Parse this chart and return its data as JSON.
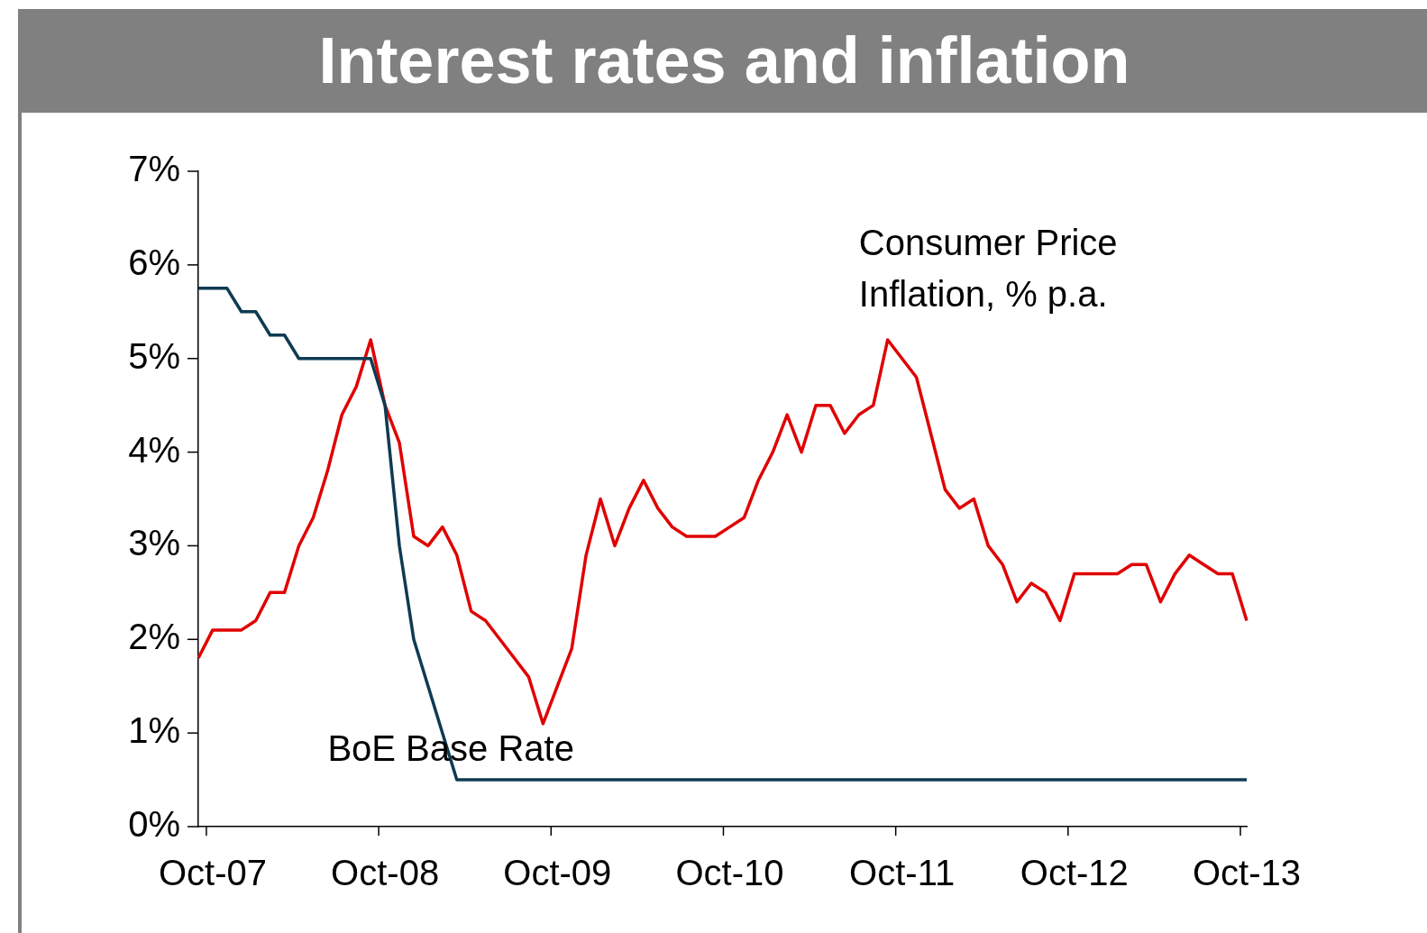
{
  "chart_data": {
    "type": "line",
    "title": "Interest rates and inflation",
    "categories": [
      null,
      "Oct-07",
      null,
      null,
      null,
      null,
      null,
      null,
      null,
      null,
      null,
      null,
      null,
      "Oct-08",
      null,
      null,
      null,
      null,
      null,
      null,
      null,
      null,
      null,
      null,
      null,
      "Oct-09",
      null,
      null,
      null,
      null,
      null,
      null,
      null,
      null,
      null,
      null,
      null,
      "Oct-10",
      null,
      null,
      null,
      null,
      null,
      null,
      null,
      null,
      null,
      null,
      null,
      "Oct-11",
      null,
      null,
      null,
      null,
      null,
      null,
      null,
      null,
      null,
      null,
      null,
      "Oct-12",
      null,
      null,
      null,
      null,
      null,
      null,
      null,
      null,
      null,
      null,
      null,
      "Oct-13"
    ],
    "series": [
      {
        "name": "BoE Base Rate",
        "color": "#0f3b52",
        "values": [
          5.75,
          5.75,
          5.75,
          5.5,
          5.5,
          5.25,
          5.25,
          5.0,
          5.0,
          5.0,
          5.0,
          5.0,
          5.0,
          4.5,
          3.0,
          2.0,
          1.5,
          1.0,
          0.5,
          0.5,
          0.5,
          0.5,
          0.5,
          0.5,
          0.5,
          0.5,
          0.5,
          0.5,
          0.5,
          0.5,
          0.5,
          0.5,
          0.5,
          0.5,
          0.5,
          0.5,
          0.5,
          0.5,
          0.5,
          0.5,
          0.5,
          0.5,
          0.5,
          0.5,
          0.5,
          0.5,
          0.5,
          0.5,
          0.5,
          0.5,
          0.5,
          0.5,
          0.5,
          0.5,
          0.5,
          0.5,
          0.5,
          0.5,
          0.5,
          0.5,
          0.5,
          0.5,
          0.5,
          0.5,
          0.5,
          0.5,
          0.5,
          0.5,
          0.5,
          0.5,
          0.5,
          0.5,
          0.5,
          0.5
        ]
      },
      {
        "name": "Consumer Price Inflation, % p.a.",
        "color": "#e00000",
        "values": [
          1.8,
          2.1,
          2.1,
          2.1,
          2.2,
          2.5,
          2.5,
          3.0,
          3.3,
          3.8,
          4.4,
          4.7,
          5.2,
          4.5,
          4.1,
          3.1,
          3.0,
          3.2,
          2.9,
          2.3,
          2.2,
          2.0,
          1.8,
          1.6,
          1.1,
          1.5,
          1.9,
          2.9,
          3.5,
          3.0,
          3.4,
          3.7,
          3.4,
          3.2,
          3.1,
          3.1,
          3.1,
          3.2,
          3.3,
          3.7,
          4.0,
          4.4,
          4.0,
          4.5,
          4.5,
          4.2,
          4.4,
          4.5,
          5.2,
          5.0,
          4.8,
          4.2,
          3.6,
          3.4,
          3.5,
          3.0,
          2.8,
          2.4,
          2.6,
          2.5,
          2.2,
          2.7,
          2.7,
          2.7,
          2.7,
          2.8,
          2.8,
          2.4,
          2.7,
          2.9,
          2.8,
          2.7,
          2.7,
          2.2
        ]
      }
    ],
    "ylim": [
      0,
      7
    ],
    "yticks": [
      {
        "value": 0,
        "label": "0%"
      },
      {
        "value": 1,
        "label": "1%"
      },
      {
        "value": 2,
        "label": "2%"
      },
      {
        "value": 3,
        "label": "3%"
      },
      {
        "value": 4,
        "label": "4%"
      },
      {
        "value": 5,
        "label": "5%"
      },
      {
        "value": 6,
        "label": "6%"
      },
      {
        "value": 7,
        "label": "7%"
      }
    ],
    "legend": false,
    "marker": "none",
    "line_style": "solid"
  }
}
